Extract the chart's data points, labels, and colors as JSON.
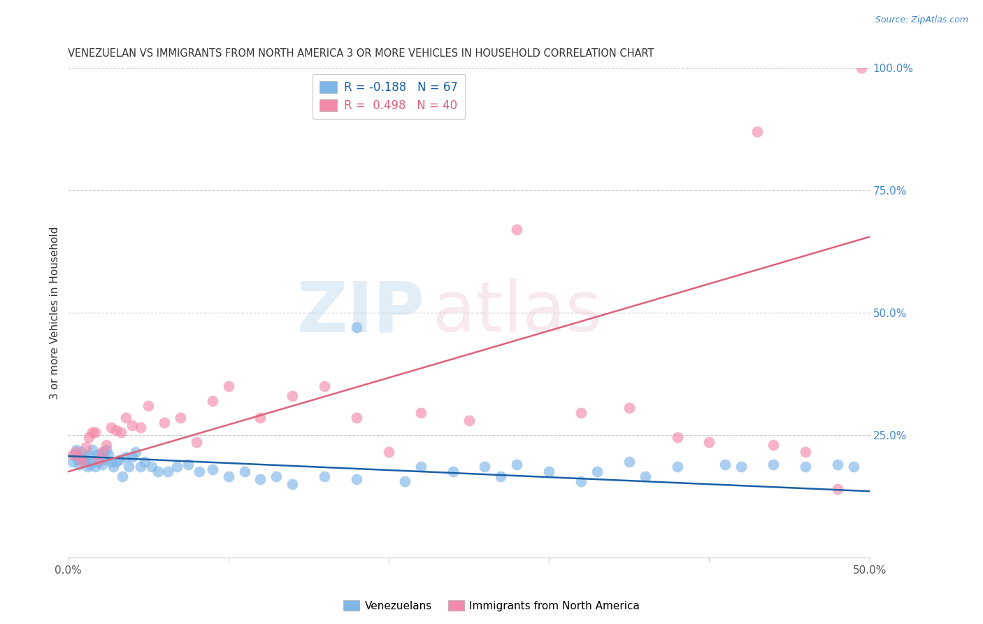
{
  "title": "VENEZUELAN VS IMMIGRANTS FROM NORTH AMERICA 3 OR MORE VEHICLES IN HOUSEHOLD CORRELATION CHART",
  "source": "Source: ZipAtlas.com",
  "ylabel": "3 or more Vehicles in Household",
  "xlim": [
    0.0,
    0.5
  ],
  "ylim": [
    0.0,
    1.0
  ],
  "yticks_right": [
    0.0,
    0.25,
    0.5,
    0.75,
    1.0
  ],
  "yticklabels_right": [
    "",
    "25.0%",
    "50.0%",
    "75.0%",
    "100.0%"
  ],
  "legend_labels": [
    "Venezuelans",
    "Immigrants from North America"
  ],
  "blue_R": -0.188,
  "blue_N": 67,
  "pink_R": 0.498,
  "pink_N": 40,
  "blue_color": "#7eb6e8",
  "pink_color": "#f48aaa",
  "blue_line_color": "#1a5fa8",
  "pink_line_color": "#e0607a",
  "blue_x": [
    0.003,
    0.004,
    0.005,
    0.006,
    0.007,
    0.008,
    0.009,
    0.01,
    0.011,
    0.012,
    0.013,
    0.014,
    0.015,
    0.016,
    0.017,
    0.018,
    0.019,
    0.02,
    0.021,
    0.022,
    0.023,
    0.024,
    0.025,
    0.027,
    0.028,
    0.03,
    0.032,
    0.034,
    0.036,
    0.038,
    0.04,
    0.042,
    0.045,
    0.048,
    0.052,
    0.056,
    0.062,
    0.068,
    0.075,
    0.082,
    0.09,
    0.1,
    0.11,
    0.12,
    0.13,
    0.14,
    0.16,
    0.18,
    0.21,
    0.24,
    0.27,
    0.3,
    0.33,
    0.28,
    0.35,
    0.38,
    0.42,
    0.44,
    0.46,
    0.48,
    0.49,
    0.18,
    0.22,
    0.26,
    0.32,
    0.36,
    0.41
  ],
  "blue_y": [
    0.195,
    0.21,
    0.22,
    0.2,
    0.19,
    0.215,
    0.2,
    0.205,
    0.195,
    0.185,
    0.21,
    0.19,
    0.22,
    0.195,
    0.185,
    0.21,
    0.195,
    0.205,
    0.19,
    0.215,
    0.2,
    0.22,
    0.21,
    0.195,
    0.185,
    0.195,
    0.2,
    0.165,
    0.205,
    0.185,
    0.205,
    0.215,
    0.185,
    0.195,
    0.185,
    0.175,
    0.175,
    0.185,
    0.19,
    0.175,
    0.18,
    0.165,
    0.175,
    0.16,
    0.165,
    0.15,
    0.165,
    0.16,
    0.155,
    0.175,
    0.165,
    0.175,
    0.175,
    0.19,
    0.195,
    0.185,
    0.185,
    0.19,
    0.185,
    0.19,
    0.185,
    0.47,
    0.185,
    0.185,
    0.155,
    0.165,
    0.19
  ],
  "pink_x": [
    0.003,
    0.005,
    0.007,
    0.009,
    0.011,
    0.013,
    0.015,
    0.017,
    0.019,
    0.021,
    0.024,
    0.027,
    0.03,
    0.033,
    0.036,
    0.04,
    0.045,
    0.05,
    0.06,
    0.07,
    0.08,
    0.09,
    0.1,
    0.12,
    0.14,
    0.16,
    0.18,
    0.2,
    0.22,
    0.25,
    0.28,
    0.32,
    0.35,
    0.38,
    0.4,
    0.43,
    0.44,
    0.46,
    0.48,
    0.495
  ],
  "pink_y": [
    0.21,
    0.215,
    0.205,
    0.195,
    0.225,
    0.245,
    0.255,
    0.255,
    0.2,
    0.215,
    0.23,
    0.265,
    0.26,
    0.255,
    0.285,
    0.27,
    0.265,
    0.31,
    0.275,
    0.285,
    0.235,
    0.32,
    0.35,
    0.285,
    0.33,
    0.35,
    0.285,
    0.215,
    0.295,
    0.28,
    0.67,
    0.295,
    0.305,
    0.245,
    0.235,
    0.87,
    0.23,
    0.215,
    0.14,
    1.0
  ],
  "figsize": [
    14.06,
    8.92
  ],
  "dpi": 100
}
